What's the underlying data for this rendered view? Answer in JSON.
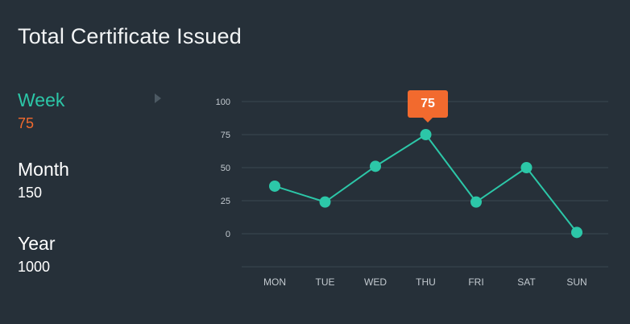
{
  "header": {
    "title": "Total Certificate Issued"
  },
  "periods": [
    {
      "label": "Week",
      "value": "75",
      "active": true
    },
    {
      "label": "Month",
      "value": "150",
      "active": false
    },
    {
      "label": "Year",
      "value": "1000",
      "active": false
    }
  ],
  "tooltip": {
    "value": "75"
  },
  "colors": {
    "background": "#263039",
    "accent": "#2cc7a8",
    "highlight": "#f26a2e",
    "grid": "#3b4751",
    "axis_text": "#c3cad0"
  },
  "chart_data": {
    "type": "line",
    "categories": [
      "MON",
      "TUE",
      "WED",
      "THU",
      "FRI",
      "SAT",
      "SUN"
    ],
    "series": [
      {
        "values": [
          36,
          24,
          51,
          75,
          24,
          50,
          1
        ]
      }
    ],
    "yticks": [
      "100",
      "75",
      "50",
      "25",
      "0"
    ],
    "ylim": [
      -25,
      100
    ],
    "grid": true,
    "legend": false
  }
}
